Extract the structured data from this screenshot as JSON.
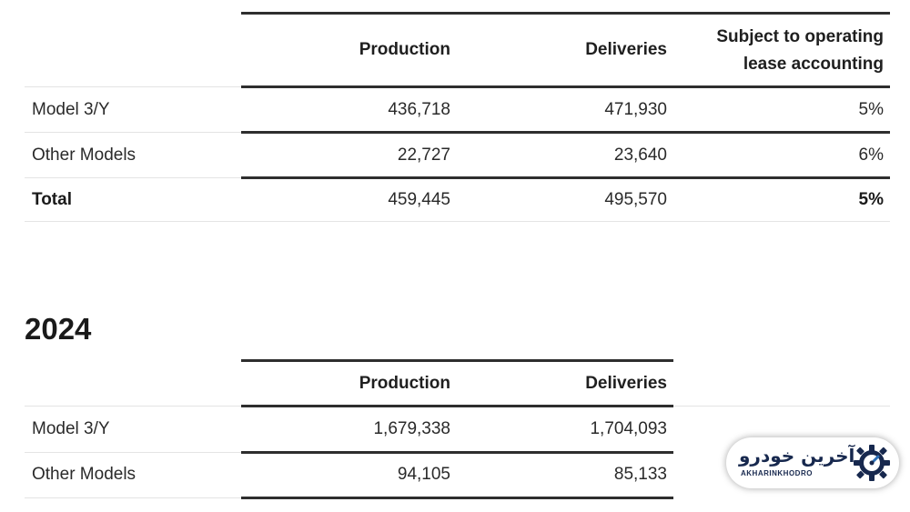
{
  "table1": {
    "headers": {
      "production": "Production",
      "deliveries": "Deliveries",
      "lease_line1": "Subject to operating",
      "lease_line2": "lease accounting"
    },
    "rows": [
      {
        "label": "Model 3/Y",
        "production": "436,718",
        "deliveries": "471,930",
        "lease": "5%"
      },
      {
        "label": "Other Models",
        "production": "22,727",
        "deliveries": "23,640",
        "lease": "6%"
      },
      {
        "label": "Total",
        "production": "459,445",
        "deliveries": "495,570",
        "lease": "5%"
      }
    ]
  },
  "section2": {
    "title": "2024"
  },
  "table2": {
    "headers": {
      "production": "Production",
      "deliveries": "Deliveries"
    },
    "rows": [
      {
        "label": "Model 3/Y",
        "production": "1,679,338",
        "deliveries": "1,704,093"
      },
      {
        "label": "Other Models",
        "production": "94,105",
        "deliveries": "85,133"
      }
    ]
  },
  "watermark": {
    "name_fa": "آخرین خودرو",
    "name_en": "AKHARINKHODRO",
    "icon": "speedometer-gear-icon",
    "color": "#17284e",
    "accent": "#2c6fb7"
  }
}
